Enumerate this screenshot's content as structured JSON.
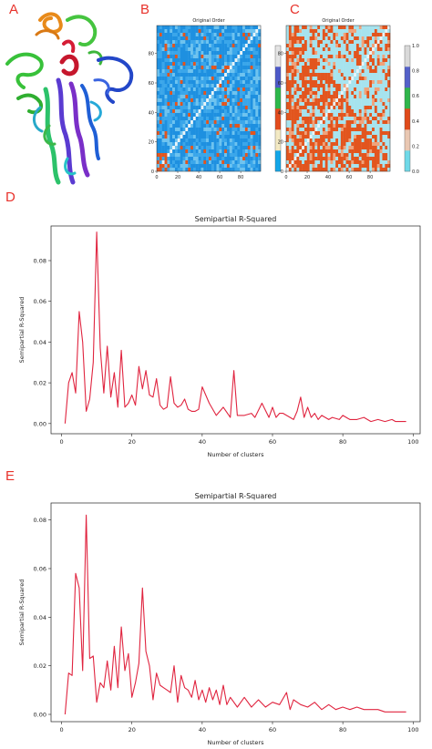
{
  "panels": {
    "a": {
      "letter": "A"
    },
    "b": {
      "letter": "B"
    },
    "c": {
      "letter": "C"
    },
    "d": {
      "letter": "D"
    },
    "e": {
      "letter": "E"
    }
  },
  "colors": {
    "line": "#e0243f",
    "letters": "#e8322b",
    "heat_blue": "#1e90e0",
    "heat_orange": "#e2551e",
    "heat_cyan": "#a6e3ee"
  },
  "chart_data": [
    {
      "type": "heatmap",
      "panel": "B",
      "title": "Original Order",
      "xticks": [
        "0",
        "20",
        "40",
        "60",
        "80"
      ],
      "yticks": [
        "0",
        "20",
        "40",
        "60",
        "80"
      ],
      "xlim": [
        0,
        99
      ],
      "ylim": [
        0,
        99
      ],
      "colorbar_ticks": [
        "0",
        "20",
        "40",
        "60",
        "80"
      ],
      "colorbar_colors": [
        "#12a6e8",
        "#f3e9c3",
        "#e34b1c",
        "#2cb84a",
        "#4d59c8",
        "#e4e4e4"
      ]
    },
    {
      "type": "heatmap",
      "panel": "C",
      "title": "Original Order",
      "xticks": [
        "0",
        "20",
        "40",
        "60",
        "80"
      ],
      "yticks": [
        "0",
        "20",
        "40",
        "60",
        "80"
      ],
      "xlim": [
        0,
        99
      ],
      "ylim": [
        0,
        99
      ],
      "colorbar_ticks": [
        "0.0",
        "0.2",
        "0.4",
        "0.6",
        "0.8",
        "1.0"
      ],
      "colorbar_colors": [
        "#6fd9e8",
        "#e9c7b2",
        "#e04a1a",
        "#2fb64b",
        "#5461c9",
        "#d9d9d9"
      ]
    },
    {
      "type": "line",
      "panel": "D",
      "title": "Semipartial R-Squared",
      "xlabel": "Number of clusters",
      "ylabel": "Semipartial R-Squared",
      "xlim": [
        -3,
        102
      ],
      "ylim": [
        -0.005,
        0.097
      ],
      "xticks": [
        0,
        20,
        40,
        60,
        80,
        100
      ],
      "yticks": [
        0.0,
        0.02,
        0.04,
        0.06,
        0.08
      ],
      "ytick_labels": [
        "0.00",
        "0.02",
        "0.04",
        "0.06",
        "0.08"
      ],
      "series": [
        {
          "x": [
            1,
            2,
            3,
            4,
            5,
            6,
            7,
            8,
            9,
            10,
            11,
            12,
            13,
            14,
            15,
            16,
            17,
            18,
            19,
            20,
            21,
            22,
            23,
            24,
            25,
            26,
            27,
            28,
            29,
            30,
            31,
            32,
            33,
            34,
            35,
            36,
            37,
            38,
            39,
            40,
            42,
            44,
            46,
            48,
            49,
            50,
            52,
            54,
            55,
            57,
            59,
            60,
            61,
            62,
            63,
            65,
            66,
            67,
            68,
            69,
            70,
            71,
            72,
            73,
            74,
            76,
            77,
            79,
            80,
            82,
            84,
            86,
            88,
            90,
            92,
            94,
            95,
            96,
            98
          ],
          "y": [
            0.0,
            0.02,
            0.025,
            0.015,
            0.055,
            0.04,
            0.006,
            0.012,
            0.03,
            0.094,
            0.037,
            0.015,
            0.038,
            0.013,
            0.025,
            0.008,
            0.036,
            0.008,
            0.01,
            0.014,
            0.009,
            0.028,
            0.017,
            0.026,
            0.014,
            0.013,
            0.022,
            0.009,
            0.007,
            0.008,
            0.023,
            0.01,
            0.008,
            0.009,
            0.012,
            0.007,
            0.006,
            0.006,
            0.007,
            0.018,
            0.01,
            0.004,
            0.008,
            0.003,
            0.026,
            0.004,
            0.004,
            0.005,
            0.003,
            0.01,
            0.003,
            0.008,
            0.003,
            0.005,
            0.005,
            0.003,
            0.002,
            0.006,
            0.013,
            0.003,
            0.008,
            0.003,
            0.005,
            0.002,
            0.004,
            0.002,
            0.003,
            0.002,
            0.004,
            0.002,
            0.002,
            0.003,
            0.001,
            0.002,
            0.001,
            0.002,
            0.001,
            0.001,
            0.001
          ]
        }
      ]
    },
    {
      "type": "line",
      "panel": "E",
      "title": "Semipartial R-Squared",
      "xlabel": "Number of clusters",
      "ylabel": "Semipartial R-Squared",
      "xlim": [
        -3,
        102
      ],
      "ylim": [
        -0.003,
        0.087
      ],
      "xticks": [
        0,
        20,
        40,
        60,
        80,
        100
      ],
      "yticks": [
        0.0,
        0.02,
        0.04,
        0.06,
        0.08
      ],
      "ytick_labels": [
        "0.00",
        "0.02",
        "0.04",
        "0.06",
        "0.08"
      ],
      "series": [
        {
          "x": [
            1,
            2,
            3,
            4,
            5,
            6,
            7,
            8,
            9,
            10,
            11,
            12,
            13,
            14,
            15,
            16,
            17,
            18,
            19,
            20,
            21,
            22,
            23,
            24,
            25,
            26,
            27,
            28,
            29,
            30,
            31,
            32,
            33,
            34,
            35,
            36,
            37,
            38,
            39,
            40,
            41,
            42,
            43,
            44,
            45,
            46,
            47,
            48,
            50,
            52,
            54,
            56,
            58,
            60,
            62,
            64,
            65,
            66,
            68,
            70,
            72,
            74,
            76,
            78,
            80,
            82,
            84,
            86,
            88,
            90,
            92,
            94,
            96,
            98
          ],
          "y": [
            0.0,
            0.017,
            0.016,
            0.058,
            0.052,
            0.018,
            0.082,
            0.023,
            0.024,
            0.005,
            0.013,
            0.011,
            0.022,
            0.01,
            0.028,
            0.011,
            0.036,
            0.018,
            0.025,
            0.007,
            0.013,
            0.021,
            0.052,
            0.026,
            0.02,
            0.006,
            0.017,
            0.012,
            0.011,
            0.01,
            0.009,
            0.02,
            0.005,
            0.016,
            0.011,
            0.01,
            0.007,
            0.014,
            0.006,
            0.01,
            0.005,
            0.011,
            0.006,
            0.01,
            0.004,
            0.012,
            0.004,
            0.007,
            0.003,
            0.007,
            0.003,
            0.006,
            0.003,
            0.005,
            0.004,
            0.009,
            0.002,
            0.006,
            0.004,
            0.003,
            0.005,
            0.002,
            0.004,
            0.002,
            0.003,
            0.002,
            0.003,
            0.002,
            0.002,
            0.002,
            0.001,
            0.001,
            0.001,
            0.001
          ]
        }
      ]
    }
  ]
}
